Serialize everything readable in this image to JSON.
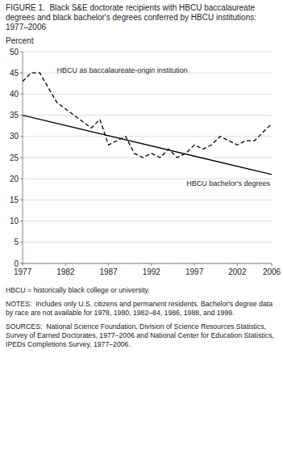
{
  "chart_data": {
    "type": "line",
    "title": "FIGURE 1.  Black S&E doctorate recipients with HBCU baccalaureate degrees and black bachelor's degrees conferred by HBCU institutions: 1977–2006",
    "y_label": "Percent",
    "xlim": [
      1977,
      2006
    ],
    "ylim": [
      0,
      50
    ],
    "xticks": [
      1977,
      1982,
      1987,
      1992,
      1997,
      2002,
      2006
    ],
    "yticks": [
      0,
      5,
      10,
      15,
      20,
      25,
      30,
      35,
      40,
      45,
      50
    ],
    "grid": true,
    "series": [
      {
        "name": "HBCU as baccalaureate-origin institution",
        "color": "#000000",
        "line_style": "dashed",
        "x": [
          1977,
          1978,
          1979,
          1981,
          1985,
          1986,
          1987,
          1988,
          1989,
          1990,
          1991,
          1992,
          1993,
          1994,
          1995,
          1996,
          1997,
          1998,
          1999,
          2000,
          2001,
          2002,
          2003,
          2004,
          2005,
          2006
        ],
        "values": [
          43,
          45,
          45,
          38,
          32,
          34,
          28,
          29,
          30,
          26,
          25,
          26,
          25,
          27,
          25,
          26,
          28,
          27,
          28,
          30,
          29,
          28,
          29,
          29,
          31,
          33
        ]
      },
      {
        "name": "HBCU bachelor's degrees",
        "color": "#000000",
        "line_style": "solid",
        "x": [
          1977,
          2006
        ],
        "values": [
          35,
          21
        ]
      }
    ],
    "notes": [
      "HBCU = historically black college or university.",
      "NOTES:  Includes only U.S. citizens and permanent residents. Bachelor's degree data by race are not available for 1978, 1980, 1982–84, 1986, 1988, and 1999.",
      "SOURCES:  National Science Foundation, Division of Science Resources Statistics, Survey of Earned Doctorates, 1977–2006 and National Center for Education Statistics, IPEDs Completions Survey, 1977–2006."
    ]
  }
}
